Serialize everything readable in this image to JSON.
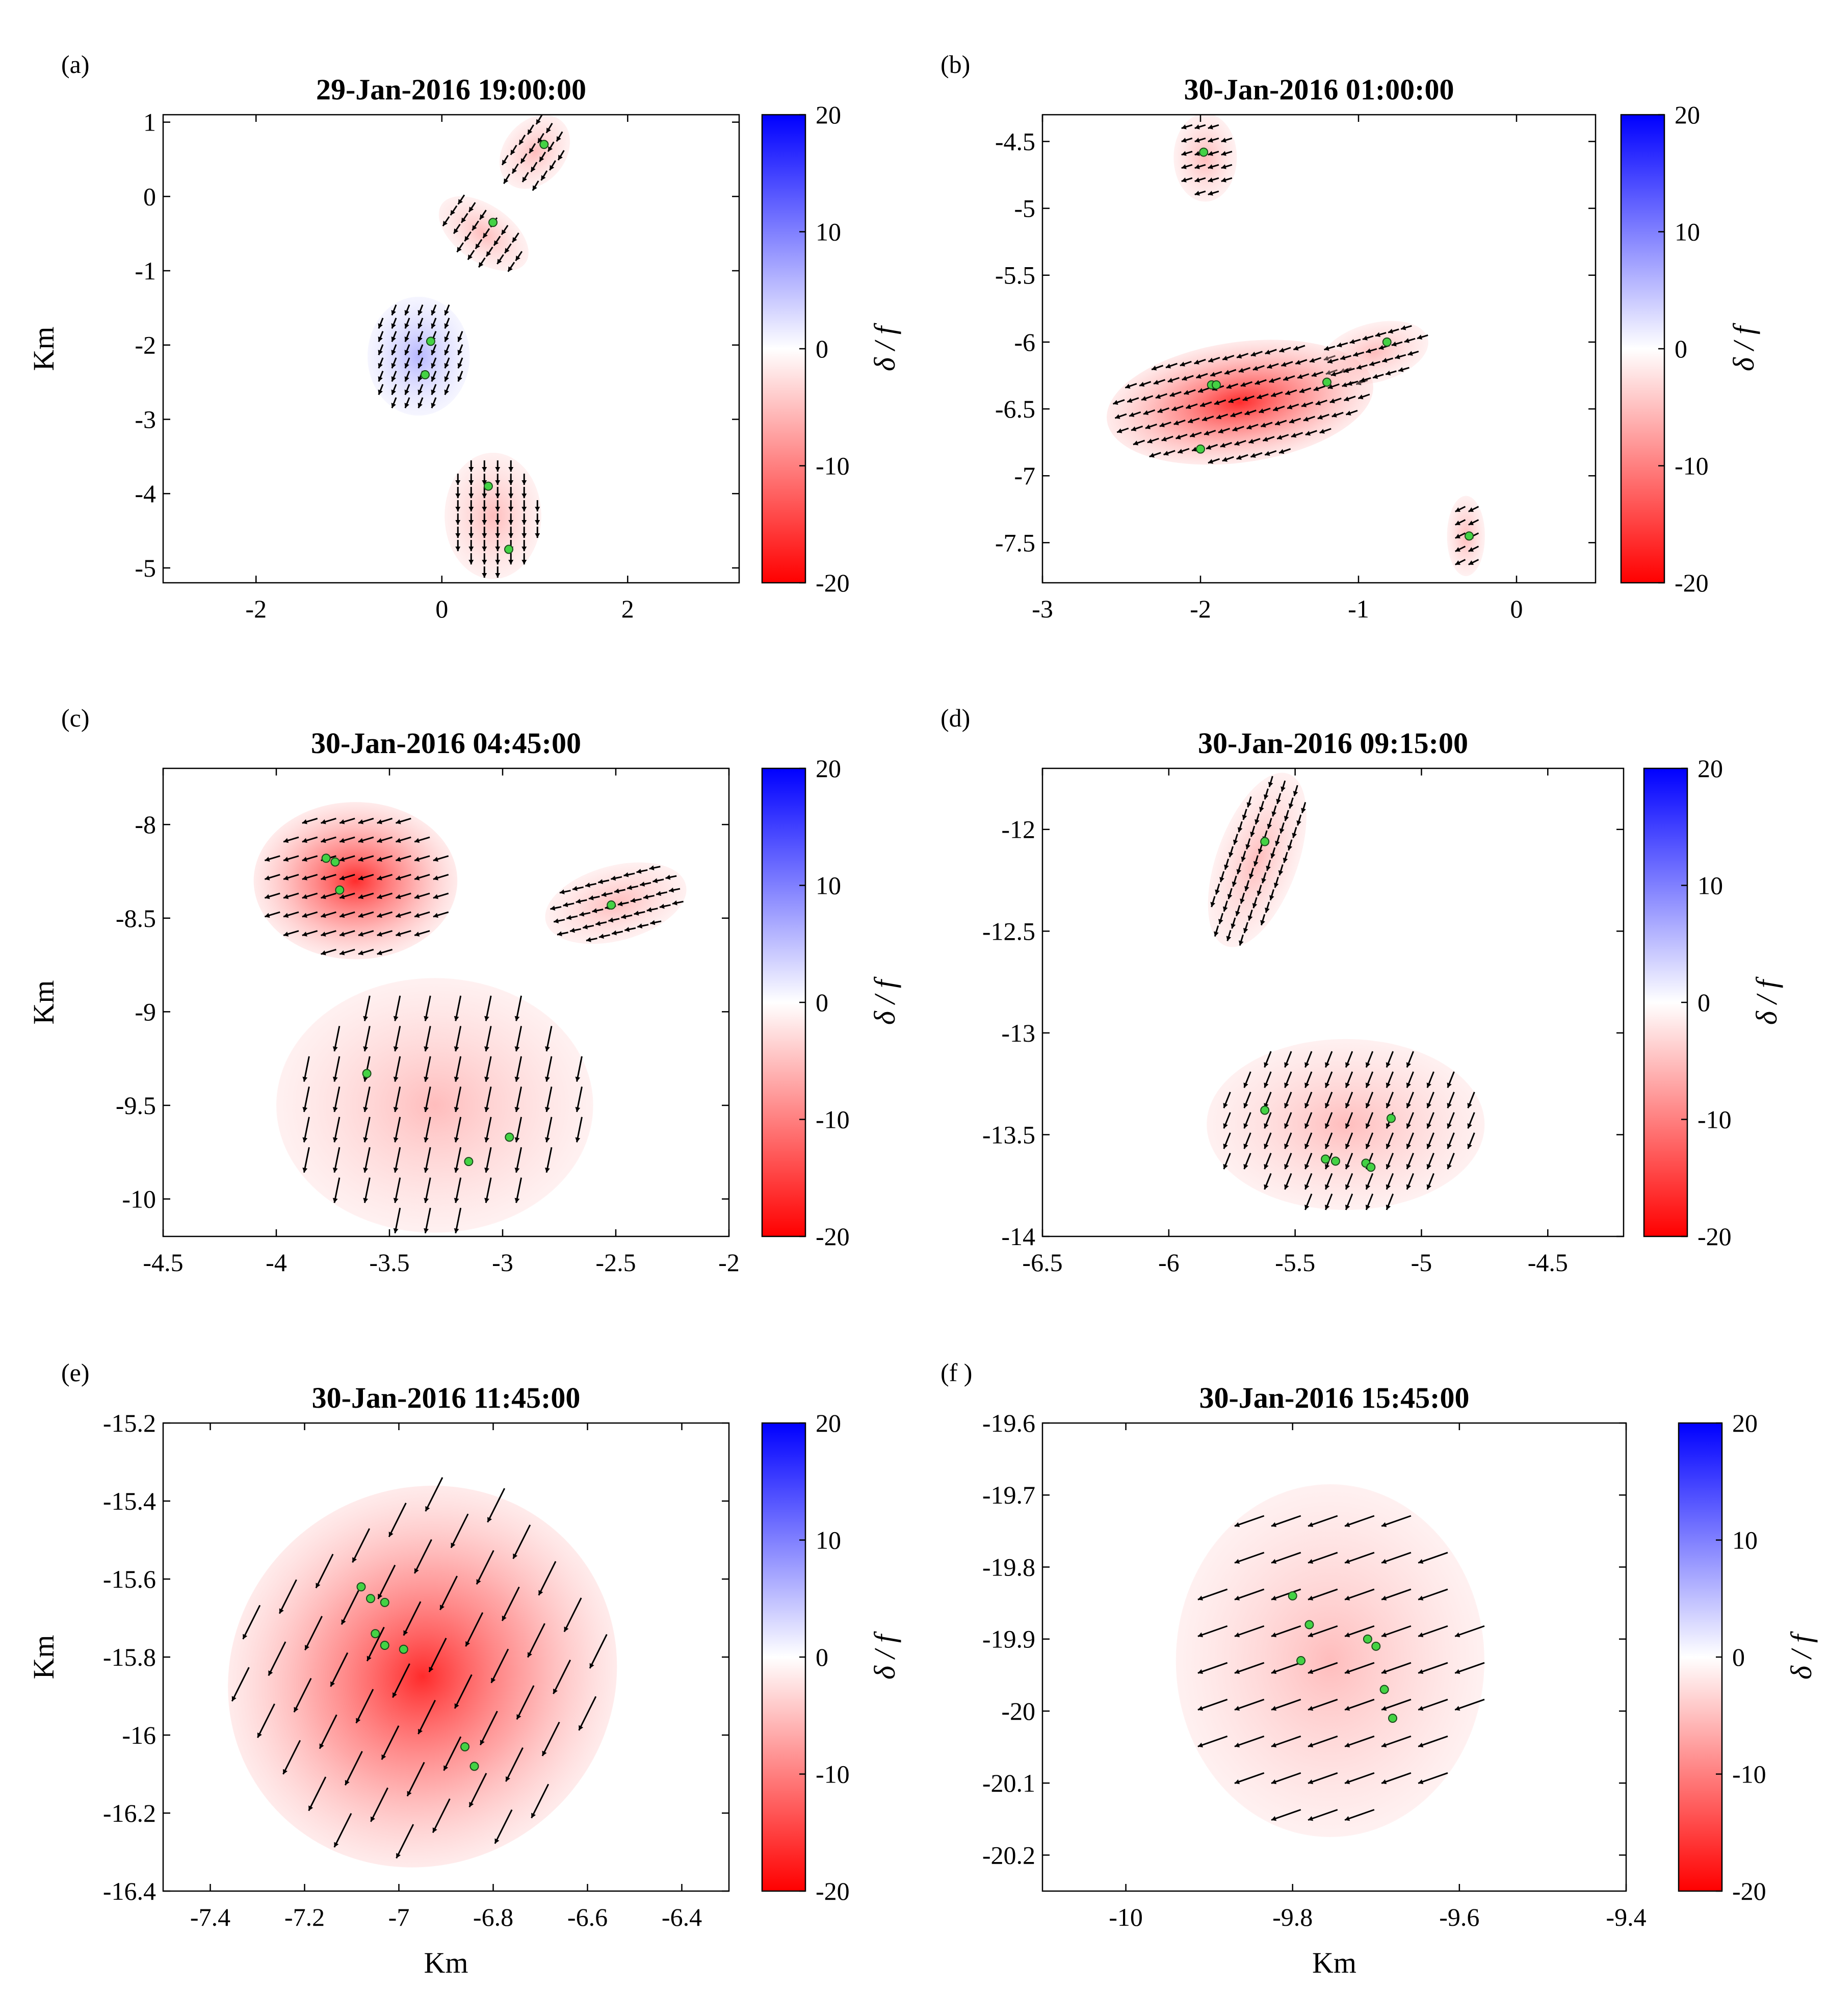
{
  "figure": {
    "colorbar": {
      "ticks": [
        20,
        10,
        0,
        -10,
        -20
      ],
      "label": "δ / f",
      "max_color": "#0000ff",
      "mid_color": "#ffffff",
      "min_color": "#ff0000"
    },
    "marker_color": "#44d244",
    "arrow_color": "#000000"
  },
  "chart_data": [
    {
      "type": "heatmap",
      "panel_label": "(a)",
      "title": "29-Jan-2016 19:00:00",
      "xlabel": "",
      "ylabel": "Km",
      "xlim": [
        -3.0,
        3.2
      ],
      "ylim": [
        -5.2,
        1.1
      ],
      "xticks": [
        -2,
        0,
        2
      ],
      "xtick_labels": [
        "-2",
        "0",
        "2"
      ],
      "yticks": [
        1,
        0,
        -1,
        -2,
        -3,
        -4,
        -5
      ],
      "ytick_labels": [
        "1",
        "0",
        "-1",
        "-2",
        "-3",
        "-4",
        "-5"
      ],
      "drifters": [
        [
          1.1,
          0.7
        ],
        [
          0.55,
          -0.35
        ],
        [
          -0.12,
          -1.95
        ],
        [
          -0.18,
          -2.4
        ],
        [
          0.5,
          -3.9
        ],
        [
          0.72,
          -4.75
        ]
      ],
      "clusters": [
        {
          "cx": 1.0,
          "cy": 0.6,
          "rx": 0.33,
          "ry": 0.55,
          "tilt": 40,
          "field": -1,
          "u": -0.6,
          "v": -1.0
        },
        {
          "cx": 0.45,
          "cy": -0.5,
          "rx": 0.55,
          "ry": 0.38,
          "tilt": 35,
          "field": -1,
          "u": -0.6,
          "v": -0.9
        },
        {
          "cx": -0.25,
          "cy": -2.15,
          "rx": 0.55,
          "ry": 0.8,
          "tilt": 0,
          "field": 2,
          "u": -0.4,
          "v": -1.0
        },
        {
          "cx": 0.55,
          "cy": -4.3,
          "rx": 0.52,
          "ry": 0.85,
          "tilt": 0,
          "field": -3,
          "u": 0.0,
          "v": -1.0
        }
      ]
    },
    {
      "type": "heatmap",
      "panel_label": "(b)",
      "title": "30-Jan-2016 01:00:00",
      "xlabel": "",
      "ylabel": "",
      "xlim": [
        -3.0,
        0.5
      ],
      "ylim": [
        -7.8,
        -4.3
      ],
      "xticks": [
        -3,
        -2,
        -1,
        0
      ],
      "xtick_labels": [
        "-3",
        "-2",
        "-1",
        "0"
      ],
      "yticks": [
        -4.5,
        -5,
        -5.5,
        -6,
        -6.5,
        -7,
        -7.5
      ],
      "ytick_labels": [
        "-4.5",
        "-5",
        "-5.5",
        "-6",
        "-6.5",
        "-7",
        "-7.5"
      ],
      "drifters": [
        [
          -1.98,
          -4.58
        ],
        [
          -1.93,
          -6.32
        ],
        [
          -1.9,
          -6.32
        ],
        [
          -1.2,
          -6.3
        ],
        [
          -0.82,
          -6.0
        ],
        [
          -0.3,
          -7.45
        ],
        [
          -2.0,
          -6.8
        ]
      ],
      "clusters": [
        {
          "cx": -1.97,
          "cy": -4.62,
          "rx": 0.2,
          "ry": 0.33,
          "tilt": 0,
          "field": -3,
          "u": -1.0,
          "v": -0.3
        },
        {
          "cx": -1.75,
          "cy": -6.45,
          "rx": 0.85,
          "ry": 0.45,
          "tilt": -8,
          "field": -9,
          "u": -1.0,
          "v": -0.35
        },
        {
          "cx": -0.9,
          "cy": -6.08,
          "rx": 0.35,
          "ry": 0.22,
          "tilt": -15,
          "field": -2,
          "u": -1.0,
          "v": -0.3
        },
        {
          "cx": -0.32,
          "cy": -7.45,
          "rx": 0.12,
          "ry": 0.3,
          "tilt": 0,
          "field": -3,
          "u": -1.0,
          "v": -0.5
        }
      ]
    },
    {
      "type": "heatmap",
      "panel_label": "(c)",
      "title": "30-Jan-2016 04:45:00",
      "xlabel": "",
      "ylabel": "Km",
      "xlim": [
        -4.5,
        -2.0
      ],
      "ylim": [
        -10.2,
        -7.7
      ],
      "xticks": [
        -4.5,
        -4,
        -3.5,
        -3,
        -2.5,
        -2
      ],
      "xtick_labels": [
        "-4.5",
        "-4",
        "-3.5",
        "-3",
        "-2.5",
        "-2"
      ],
      "yticks": [
        -8,
        -8.5,
        -9,
        -9.5,
        -10
      ],
      "ytick_labels": [
        "-8",
        "-8.5",
        "-9",
        "-9.5",
        "-10"
      ],
      "drifters": [
        [
          -3.78,
          -8.18
        ],
        [
          -3.74,
          -8.2
        ],
        [
          -3.72,
          -8.35
        ],
        [
          -2.52,
          -8.43
        ],
        [
          -3.6,
          -9.33
        ],
        [
          -2.97,
          -9.67
        ],
        [
          -3.15,
          -9.8
        ]
      ],
      "clusters": [
        {
          "cx": -3.65,
          "cy": -8.3,
          "rx": 0.45,
          "ry": 0.42,
          "tilt": 0,
          "field": -14,
          "u": -1.0,
          "v": -0.3
        },
        {
          "cx": -3.3,
          "cy": -9.5,
          "rx": 0.7,
          "ry": 0.68,
          "tilt": 0,
          "field": -7,
          "u": -0.2,
          "v": -1.0
        },
        {
          "cx": -2.5,
          "cy": -8.42,
          "rx": 0.32,
          "ry": 0.2,
          "tilt": -15,
          "field": -2,
          "u": -1.0,
          "v": -0.2
        }
      ]
    },
    {
      "type": "heatmap",
      "panel_label": "(d)",
      "title": "30-Jan-2016 09:15:00",
      "xlabel": "",
      "ylabel": "",
      "xlim": [
        -6.5,
        -4.2
      ],
      "ylim": [
        -14.0,
        -11.7
      ],
      "xticks": [
        -6.5,
        -6,
        -5.5,
        -5,
        -4.5
      ],
      "xtick_labels": [
        "-6.5",
        "-6",
        "-5.5",
        "-5",
        "-4.5"
      ],
      "yticks": [
        -12,
        -12.5,
        -13,
        -13.5,
        -14
      ],
      "ytick_labels": [
        "-12",
        "-12.5",
        "-13",
        "-13.5",
        "-14"
      ],
      "drifters": [
        [
          -5.62,
          -12.06
        ],
        [
          -5.62,
          -13.38
        ],
        [
          -5.12,
          -13.42
        ],
        [
          -5.38,
          -13.62
        ],
        [
          -5.34,
          -13.63
        ],
        [
          -5.22,
          -13.64
        ],
        [
          -5.2,
          -13.66
        ]
      ],
      "clusters": [
        {
          "cx": -5.65,
          "cy": -12.15,
          "rx": 0.16,
          "ry": 0.45,
          "tilt": 20,
          "field": -3,
          "u": -0.3,
          "v": -1.0
        },
        {
          "cx": -5.3,
          "cy": -13.45,
          "rx": 0.55,
          "ry": 0.42,
          "tilt": 0,
          "field": -7,
          "u": -0.4,
          "v": -1.0
        }
      ]
    },
    {
      "type": "heatmap",
      "panel_label": "(e)",
      "title": "30-Jan-2016 11:45:00",
      "xlabel": "Km",
      "ylabel": "Km",
      "xlim": [
        -7.5,
        -6.3
      ],
      "ylim": [
        -16.4,
        -15.2
      ],
      "xticks": [
        -7.4,
        -7.2,
        -7,
        -6.8,
        -6.6,
        -6.4
      ],
      "xtick_labels": [
        "-7.4",
        "-7.2",
        "-7",
        "-6.8",
        "-6.6",
        "-6.4"
      ],
      "yticks": [
        -15.2,
        -15.4,
        -15.6,
        -15.8,
        -16,
        -16.2,
        -16.4
      ],
      "ytick_labels": [
        "-15.2",
        "-15.4",
        "-15.6",
        "-15.8",
        "-16",
        "-16.2",
        "-16.4"
      ],
      "drifters": [
        [
          -7.08,
          -15.62
        ],
        [
          -7.06,
          -15.65
        ],
        [
          -7.03,
          -15.66
        ],
        [
          -7.05,
          -15.74
        ],
        [
          -7.03,
          -15.77
        ],
        [
          -6.99,
          -15.78
        ],
        [
          -6.86,
          -16.03
        ],
        [
          -6.84,
          -16.08
        ]
      ],
      "clusters": [
        {
          "cx": -6.95,
          "cy": -15.85,
          "rx": 0.42,
          "ry": 0.48,
          "tilt": -35,
          "field": -12,
          "u": -0.5,
          "v": -1.0
        }
      ]
    },
    {
      "type": "heatmap",
      "panel_label": "(f )",
      "title": "30-Jan-2016 15:45:00",
      "xlabel": "Km",
      "ylabel": "",
      "xlim": [
        -10.1,
        -9.4
      ],
      "ylim": [
        -20.25,
        -19.6
      ],
      "xticks": [
        -10,
        -9.8,
        -9.6,
        -9.4
      ],
      "xtick_labels": [
        "-10",
        "-9.8",
        "-9.6",
        "-9.4"
      ],
      "yticks": [
        -19.6,
        -19.7,
        -19.8,
        -19.9,
        -20,
        -20.1,
        -20.2
      ],
      "ytick_labels": [
        "-19.6",
        "-19.7",
        "-19.8",
        "-19.9",
        "-20",
        "-20.1",
        "-20.2"
      ],
      "drifters": [
        [
          -9.8,
          -19.84
        ],
        [
          -9.78,
          -19.88
        ],
        [
          -9.79,
          -19.93
        ],
        [
          -9.71,
          -19.9
        ],
        [
          -9.7,
          -19.91
        ],
        [
          -9.69,
          -19.97
        ],
        [
          -9.68,
          -20.01
        ]
      ],
      "clusters": [
        {
          "cx": -9.755,
          "cy": -19.93,
          "rx": 0.185,
          "ry": 0.245,
          "tilt": 0,
          "field": -3,
          "u": -1.0,
          "v": -0.35
        }
      ]
    }
  ]
}
